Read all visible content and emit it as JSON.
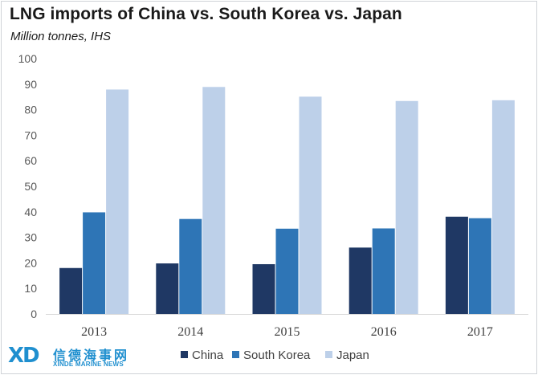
{
  "chart_data": {
    "type": "bar",
    "title": "LNG imports of China vs. South Korea vs. Japan",
    "subtitle": "Million tonnes, IHS",
    "categories": [
      "2013",
      "2014",
      "2015",
      "2016",
      "2017"
    ],
    "series": [
      {
        "name": "China",
        "color": "#1f3864",
        "values": [
          18.0,
          19.8,
          19.5,
          26.0,
          38.1
        ]
      },
      {
        "name": "South Korea",
        "color": "#2e75b6",
        "values": [
          39.8,
          37.2,
          33.4,
          33.5,
          37.5
        ]
      },
      {
        "name": "Japan",
        "color": "#bdd0e9",
        "values": [
          87.9,
          88.9,
          85.1,
          83.4,
          83.7
        ]
      }
    ],
    "ylim": [
      0,
      100
    ],
    "yticks": [
      0,
      10,
      20,
      30,
      40,
      50,
      60,
      70,
      80,
      90,
      100
    ],
    "grid": false,
    "legend": "bottom"
  },
  "watermark": {
    "mark": "XD",
    "chinese": "信德海事网",
    "english": "XINDE MARINE NEWS"
  }
}
